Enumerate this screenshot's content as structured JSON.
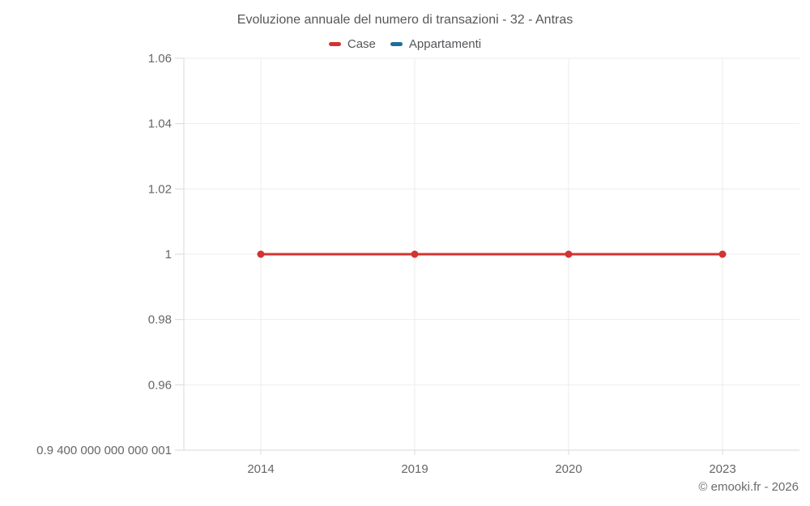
{
  "chart_data": {
    "type": "line",
    "title": "Evoluzione annuale del numero di transazioni - 32 - Antras",
    "categories": [
      "2014",
      "2019",
      "2020",
      "2023"
    ],
    "series": [
      {
        "name": "Case",
        "color": "#d23431",
        "values": [
          1,
          1,
          1,
          1
        ]
      },
      {
        "name": "Appartamenti",
        "color": "#1c6e9d",
        "values": []
      }
    ],
    "yticks": {
      "values": [
        1.06,
        1.04,
        1.02,
        1,
        0.98,
        0.96,
        0.94
      ],
      "labels": [
        "1.06",
        "1.04",
        "1.02",
        "1",
        "0.98",
        "0.96",
        "0.9 400 000 000 000 001"
      ]
    },
    "ylim": [
      0.94,
      1.06
    ],
    "grid": true,
    "legend_position": "top",
    "marker": "circle",
    "line_width": 3
  },
  "footer": {
    "copyright": "© emooki.fr - 2026"
  },
  "colors": {
    "grid": "#ededed",
    "axis": "#d9d9d9",
    "tick_text": "#666666",
    "title_text": "#56575a"
  }
}
